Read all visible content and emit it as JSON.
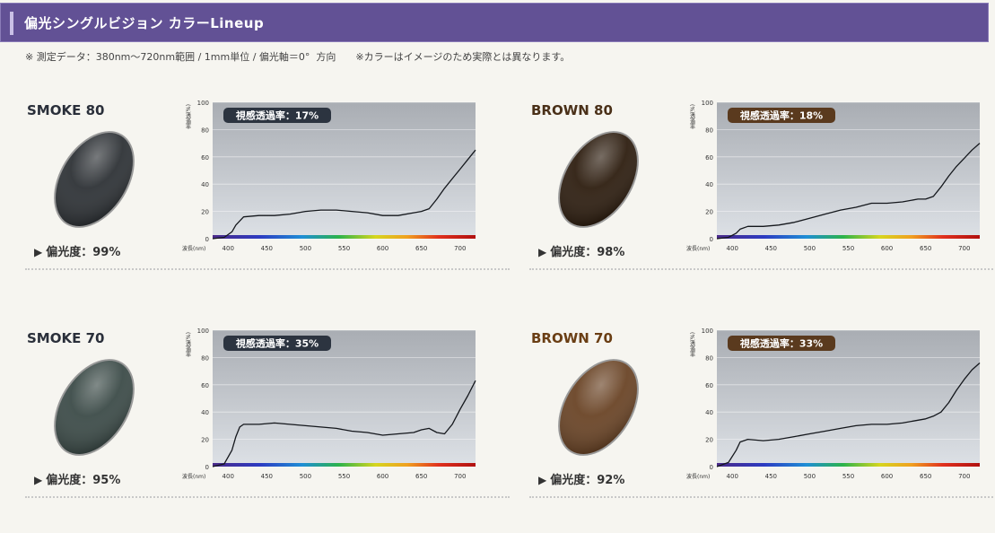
{
  "header": {
    "title": "偏光シングルビジョン カラーLineup"
  },
  "note": "※ 測定データ：380nm〜720nm範囲 / 1mm単位 / 偏光軸＝0°  方向　　※カラーはイメージのため実際とは異なります。",
  "icons": {
    "pol_arrow": "triangle-right-icon"
  },
  "axis_common": {
    "ylabel": "(%)透過率",
    "xlabel": "波長(nm)",
    "x_ticks": [
      400,
      450,
      500,
      550,
      600,
      650,
      700
    ],
    "y_ticks": [
      0,
      20,
      40,
      60,
      80,
      100
    ],
    "xlim": [
      380,
      720
    ],
    "ylim": [
      0,
      100
    ]
  },
  "chart_data": [
    {
      "type": "line",
      "name": "SMOKE 80",
      "name_color": "#2a2f3a",
      "lens_color": "#2e3236",
      "badge": "視感透過率：17%",
      "badge_color": "#2c3440",
      "polarization": "偏光度：99%",
      "x": [
        380,
        395,
        405,
        410,
        420,
        440,
        460,
        480,
        500,
        520,
        540,
        560,
        580,
        600,
        620,
        640,
        650,
        660,
        670,
        680,
        690,
        700,
        710,
        720
      ],
      "y": [
        0,
        1,
        5,
        10,
        16,
        17,
        17,
        18,
        20,
        21,
        21,
        20,
        19,
        17,
        17,
        19,
        20,
        22,
        29,
        37,
        44,
        51,
        58,
        65
      ],
      "xlim": [
        380,
        720
      ],
      "ylim": [
        0,
        100
      ]
    },
    {
      "type": "line",
      "name": "BROWN 80",
      "name_color": "#4a3018",
      "lens_color": "#2e1e10",
      "badge": "視感透過率：18%",
      "badge_color": "#5a3a1e",
      "polarization": "偏光度：98%",
      "x": [
        380,
        395,
        405,
        410,
        420,
        440,
        460,
        480,
        500,
        520,
        540,
        560,
        580,
        600,
        620,
        640,
        650,
        660,
        670,
        680,
        690,
        700,
        710,
        720
      ],
      "y": [
        0,
        1,
        4,
        7,
        9,
        9,
        10,
        12,
        15,
        18,
        21,
        23,
        26,
        26,
        27,
        29,
        29,
        31,
        38,
        46,
        53,
        59,
        65,
        70
      ],
      "xlim": [
        380,
        720
      ],
      "ylim": [
        0,
        100
      ]
    },
    {
      "type": "line",
      "name": "SMOKE 70",
      "name_color": "#2a2f3a",
      "lens_color": "#3c4b48",
      "badge": "視感透過率：35%",
      "badge_color": "#2c3440",
      "polarization": "偏光度：95%",
      "x": [
        380,
        395,
        405,
        410,
        415,
        420,
        440,
        460,
        480,
        500,
        520,
        540,
        560,
        580,
        600,
        620,
        640,
        650,
        660,
        670,
        680,
        690,
        700,
        710,
        720
      ],
      "y": [
        0,
        2,
        12,
        22,
        29,
        31,
        31,
        32,
        31,
        30,
        29,
        28,
        26,
        25,
        23,
        24,
        25,
        27,
        28,
        25,
        24,
        31,
        42,
        52,
        63
      ],
      "xlim": [
        380,
        720
      ],
      "ylim": [
        0,
        100
      ]
    },
    {
      "type": "line",
      "name": "BROWN 70",
      "name_color": "#6a3e14",
      "lens_color": "#6a4426",
      "badge": "視感透過率：33%",
      "badge_color": "#5a3a1e",
      "polarization": "偏光度：92%",
      "x": [
        380,
        395,
        405,
        410,
        420,
        440,
        460,
        480,
        500,
        520,
        540,
        560,
        580,
        600,
        620,
        640,
        650,
        660,
        670,
        680,
        690,
        700,
        710,
        720
      ],
      "y": [
        0,
        3,
        12,
        18,
        20,
        19,
        20,
        22,
        24,
        26,
        28,
        30,
        31,
        31,
        32,
        34,
        35,
        37,
        40,
        47,
        56,
        64,
        71,
        76
      ],
      "xlim": [
        380,
        720
      ],
      "ylim": [
        0,
        100
      ]
    }
  ]
}
